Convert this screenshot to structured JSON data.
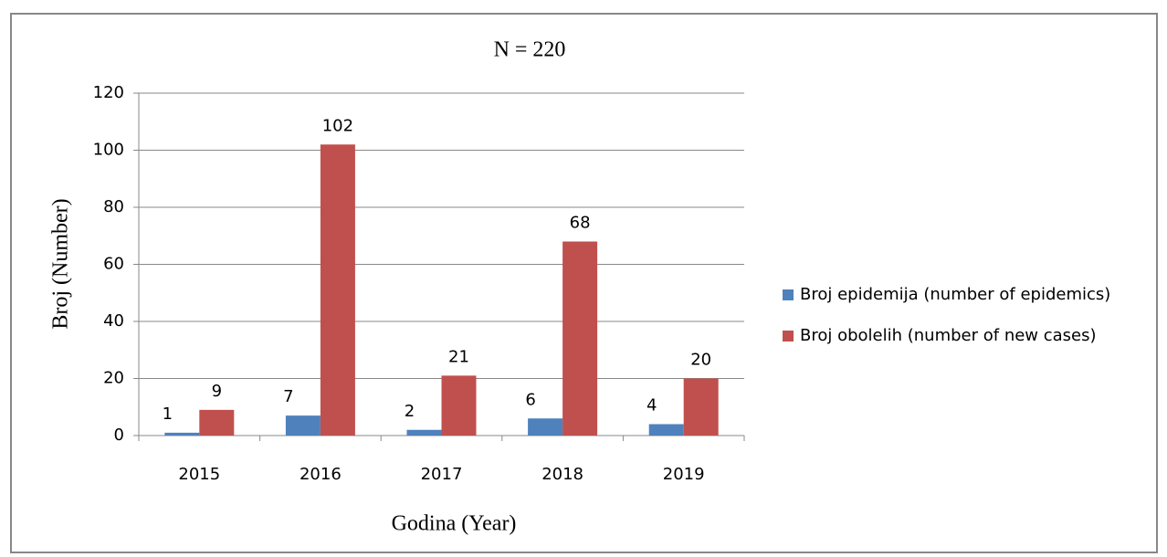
{
  "chart_data": {
    "type": "bar",
    "title": "N = 220",
    "x_label": "Godina (Year)",
    "y_label": "Broj (Number)",
    "categories": [
      "2015",
      "2016",
      "2017",
      "2018",
      "2019"
    ],
    "series": [
      {
        "name": "Broj epidemija (number of epidemics)",
        "color": "#4f81bd",
        "values": [
          1,
          7,
          2,
          6,
          4
        ]
      },
      {
        "name": "Broj obolelih (number of new cases)",
        "color": "#c0504d",
        "values": [
          9,
          102,
          21,
          68,
          20
        ]
      }
    ],
    "ylim": [
      0,
      120
    ],
    "yticks": [
      0,
      20,
      40,
      60,
      80,
      100,
      120
    ],
    "grid": true,
    "legend": "right"
  }
}
